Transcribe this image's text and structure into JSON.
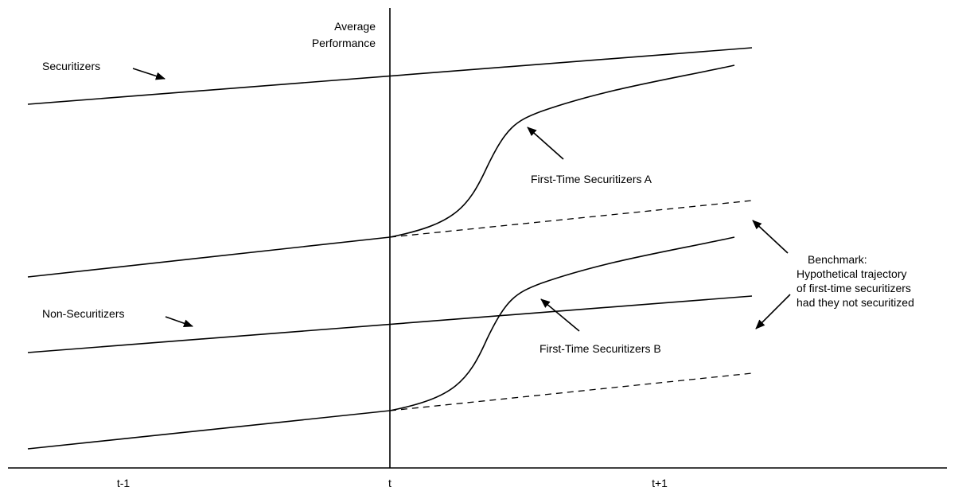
{
  "axis": {
    "y_label_line1": "Average",
    "y_label_line2": "Performance",
    "x_ticks": [
      "t-1",
      "t",
      "t+1"
    ]
  },
  "labels": {
    "securitizers": "Securitizers",
    "non_securitizers": "Non-Securitizers",
    "first_time_a": "First-Time Securitizers A",
    "first_time_b": "First-Time Securitizers B",
    "benchmark": [
      "Benchmark:",
      "Hypothetical trajectory",
      "of first-time securitizers",
      "had they not securitized"
    ]
  },
  "colors": {
    "stroke": "#000000",
    "background": "#ffffff"
  }
}
